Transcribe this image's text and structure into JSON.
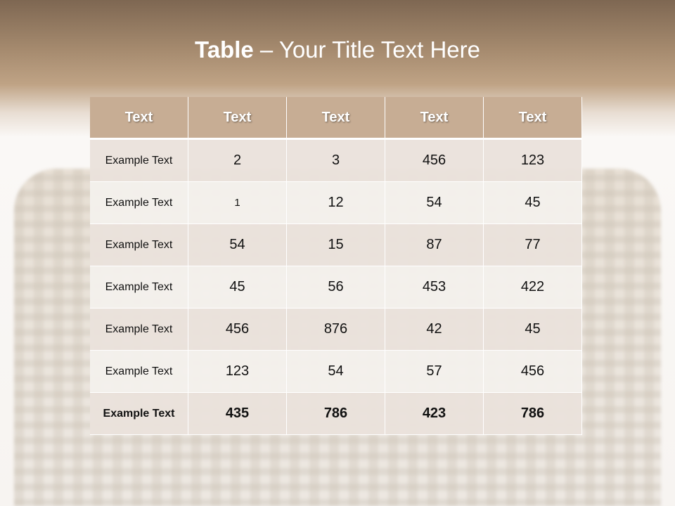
{
  "slide": {
    "title_bold": "Table",
    "title_rest": " – Your Title Text Here"
  },
  "table": {
    "headers": [
      "Text",
      "Text",
      "Text",
      "Text",
      "Text"
    ],
    "rows": [
      [
        "Example Text",
        "2",
        "3",
        "456",
        "123"
      ],
      [
        "Example Text",
        "1",
        "12",
        "54",
        "45"
      ],
      [
        "Example Text",
        "54",
        "15",
        "87",
        "77"
      ],
      [
        "Example Text",
        "45",
        "56",
        "453",
        "422"
      ],
      [
        "Example Text",
        "456",
        "876",
        "42",
        "45"
      ],
      [
        "Example Text",
        "123",
        "54",
        "57",
        "456"
      ],
      [
        "Example Text",
        "435",
        "786",
        "423",
        "786"
      ]
    ]
  },
  "colors": {
    "header": "#c7ad94",
    "row_odd": "#eae2dc",
    "row_even": "#f4f0ec",
    "top_band": "#a58a6e"
  }
}
